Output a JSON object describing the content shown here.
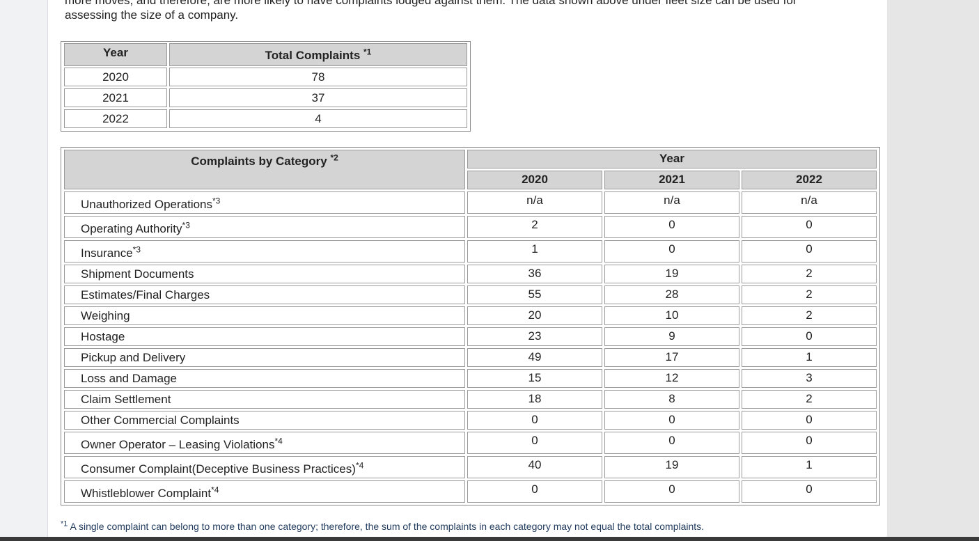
{
  "intro": {
    "line1": "more moves, and therefore, are more likely to have complaints lodged against them. The data shown above under fleet size can be used for",
    "line2": "assessing the size of a company."
  },
  "totals_table": {
    "headers": {
      "year": "Year",
      "total": "Total Complaints",
      "total_note": "*1"
    },
    "rows": [
      [
        "2020",
        78
      ],
      [
        "2021",
        37
      ],
      [
        "2022",
        4
      ]
    ]
  },
  "category_table": {
    "header": {
      "category": "Complaints by Category",
      "category_note": "*2",
      "year": "Year",
      "years": [
        "2020",
        "2021",
        "2022"
      ]
    },
    "rows": [
      {
        "category": "Unauthorized Operations",
        "note": "*3",
        "values": [
          "n/a",
          "n/a",
          "n/a"
        ]
      },
      {
        "category": "Operating Authority",
        "note": "*3",
        "values": [
          2,
          0,
          0
        ]
      },
      {
        "category": "Insurance",
        "note": "*3",
        "values": [
          1,
          0,
          0
        ]
      },
      {
        "category": "Shipment Documents",
        "values": [
          36,
          19,
          2
        ]
      },
      {
        "category": "Estimates/Final Charges",
        "values": [
          55,
          28,
          2
        ]
      },
      {
        "category": "Weighing",
        "values": [
          20,
          10,
          2
        ]
      },
      {
        "category": "Hostage",
        "values": [
          23,
          9,
          0
        ]
      },
      {
        "category": "Pickup and Delivery",
        "values": [
          49,
          17,
          1
        ]
      },
      {
        "category": "Loss and Damage",
        "values": [
          15,
          12,
          3
        ]
      },
      {
        "category": "Claim Settlement",
        "values": [
          18,
          8,
          2
        ]
      },
      {
        "category": "Other Commercial Complaints",
        "values": [
          0,
          0,
          0
        ]
      },
      {
        "category": "Owner Operator – Leasing Violations",
        "note": "*4",
        "values": [
          0,
          0,
          0
        ]
      },
      {
        "category": "Consumer Complaint(Deceptive Business Practices)",
        "note": "*4",
        "values": [
          40,
          19,
          1
        ]
      },
      {
        "category": "Whistleblower Complaint",
        "note": "*4",
        "values": [
          0,
          0,
          0
        ]
      }
    ]
  },
  "footnotes": [
    {
      "mark": "*1",
      "text": "A single complaint can belong to more than one category; therefore, the sum of the complaints in each category may not equal the total complaints."
    }
  ]
}
